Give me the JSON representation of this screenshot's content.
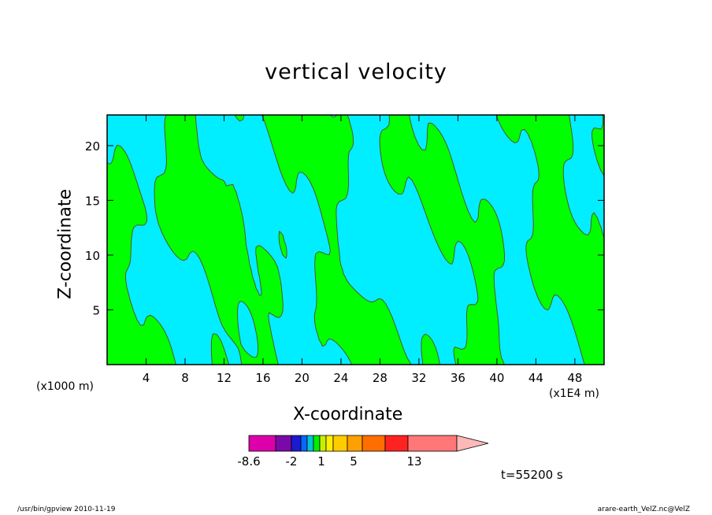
{
  "chart_data": {
    "type": "heatmap",
    "title": "vertical velocity",
    "xlabel": "X-coordinate",
    "ylabel": "Z-coordinate",
    "x_unit_note": "(x1000 m)",
    "x_scale_note": "(x1E4 m)",
    "xlim": [
      0,
      51
    ],
    "ylim": [
      0,
      22.8
    ],
    "x_ticks": [
      "4",
      "8",
      "12",
      "16",
      "20",
      "24",
      "28",
      "32",
      "36",
      "40",
      "44",
      "48"
    ],
    "y_ticks": [
      "5",
      "10",
      "15",
      "20"
    ],
    "colorbar": {
      "labels": [
        "-8.6",
        "-2",
        "1",
        "5",
        "13"
      ],
      "colors": [
        "#dd00aa",
        "#7a0aa8",
        "#1a1ad0",
        "#0a66ff",
        "#00c4d8",
        "#00ee00",
        "#c8ee00",
        "#ffee00",
        "#ffcc00",
        "#ffa000",
        "#ff6e00",
        "#ff2222",
        "#ff7777",
        "#ffb8b8"
      ]
    },
    "fill_colors": {
      "negative": "#00eeff",
      "positive": "#00ff00",
      "contour": "#5a4a14"
    },
    "time_label": "t=55200 s"
  },
  "footer": {
    "left": "/usr/bin/gpview   2010-11-19",
    "right": "arare-earth_VelZ.nc@VelZ"
  }
}
